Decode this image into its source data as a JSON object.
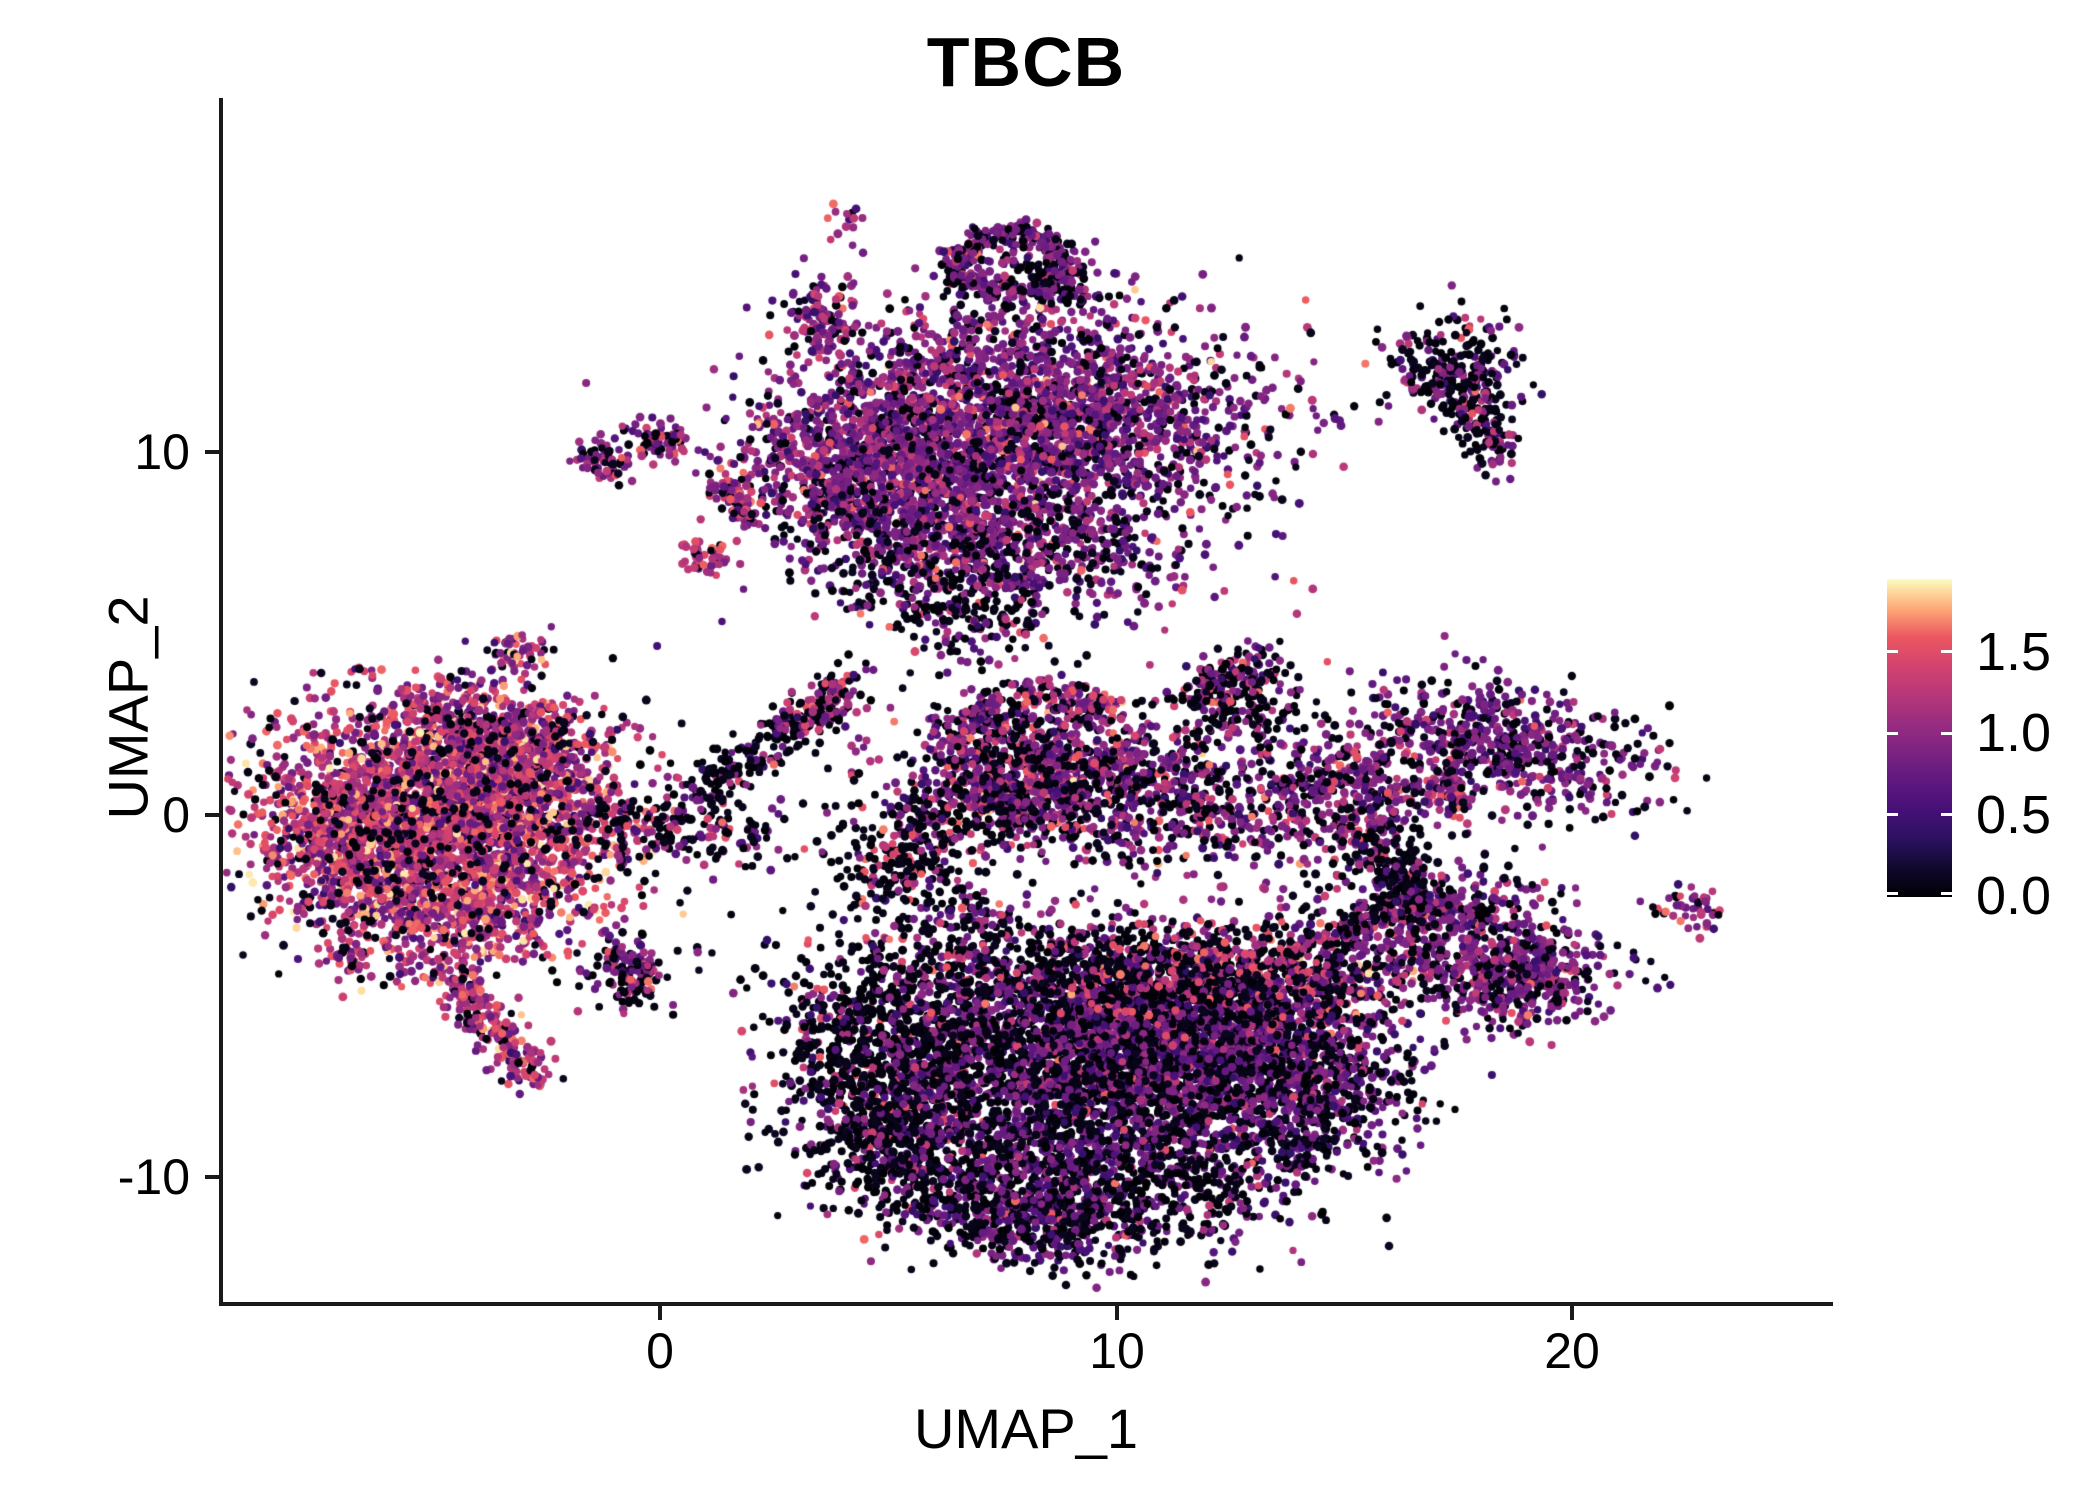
{
  "chart_data": {
    "type": "scatter",
    "title": "TBCB",
    "xlabel": "UMAP_1",
    "ylabel": "UMAP_2",
    "xlim": [
      -9.6,
      25.7
    ],
    "ylim": [
      -13.5,
      19.7
    ],
    "grid": false,
    "x_tick_labels": [
      "0",
      "10",
      "20"
    ],
    "x_tick_values": [
      0,
      10,
      20
    ],
    "y_tick_labels": [
      "10",
      "0",
      "-10"
    ],
    "y_tick_values": [
      10,
      0,
      -10
    ],
    "legend_position": "right",
    "colorbar": {
      "vmin": 0.0,
      "vmax": 1.95,
      "tick_labels": [
        "1.5",
        "1.0",
        "0.5",
        "0.0"
      ],
      "tick_values": [
        1.5,
        1.0,
        0.5,
        0.0
      ]
    },
    "palette_name": "magma",
    "palette": [
      "#000004",
      "#10092d",
      "#2c1160",
      "#451077",
      "#5f187f",
      "#7b2382",
      "#982d80",
      "#b73779",
      "#d3436e",
      "#eb5760",
      "#feab76",
      "#fcfdbf"
    ],
    "expression_bins": [
      [
        0.0,
        0.12
      ],
      [
        0.38,
        0.7
      ],
      [
        0.72,
        1.02
      ],
      [
        1.05,
        1.32
      ],
      [
        1.35,
        1.68
      ],
      [
        1.7,
        1.92
      ]
    ],
    "point_radius_px": [
      3.6,
      4.5
    ],
    "clusters": [
      {
        "name": "left-core",
        "kind": "blob",
        "cx": -4.6,
        "cy": 0.2,
        "sx": 1.9,
        "sy": 1.3,
        "rot": -12,
        "n": 2300,
        "mix": [
          7,
          6,
          17,
          30,
          31,
          9
        ]
      },
      {
        "name": "left-top",
        "kind": "blob",
        "cx": -3.4,
        "cy": 2.2,
        "sx": 1.2,
        "sy": 0.7,
        "rot": -25,
        "n": 550,
        "mix": [
          10,
          8,
          22,
          30,
          26,
          4
        ]
      },
      {
        "name": "left-west",
        "kind": "blob",
        "cx": -6.9,
        "cy": -0.8,
        "sx": 1.0,
        "sy": 1.1,
        "rot": 0,
        "n": 500,
        "mix": [
          7,
          6,
          17,
          30,
          31,
          9
        ]
      },
      {
        "name": "left-south",
        "kind": "blob",
        "cx": -4.6,
        "cy": -2.6,
        "sx": 1.4,
        "sy": 0.9,
        "rot": 15,
        "n": 650,
        "mix": [
          7,
          6,
          17,
          30,
          31,
          9
        ]
      },
      {
        "name": "left-tail",
        "kind": "line",
        "x1": -4.8,
        "y1": -4.1,
        "x2": -2.8,
        "y2": -7.2,
        "s": 0.3,
        "n": 230,
        "mix": [
          10,
          8,
          22,
          30,
          26,
          4
        ]
      },
      {
        "name": "left-halo",
        "kind": "blob",
        "cx": -4.8,
        "cy": -0.2,
        "sx": 2.6,
        "sy": 2.0,
        "rot": 0,
        "n": 300,
        "mix": [
          85,
          5,
          6,
          3,
          1,
          0
        ]
      },
      {
        "name": "island-west",
        "kind": "blob",
        "cx": -3.1,
        "cy": 4.5,
        "sx": 0.33,
        "sy": 0.28,
        "rot": 0,
        "n": 55,
        "mix": [
          15,
          10,
          30,
          25,
          18,
          2
        ]
      },
      {
        "name": "island-sw",
        "kind": "blob",
        "cx": -6.7,
        "cy": -4.0,
        "sx": 0.24,
        "sy": 0.18,
        "rot": 0,
        "n": 22,
        "mix": [
          20,
          10,
          30,
          30,
          10,
          0
        ]
      },
      {
        "name": "island-s",
        "kind": "blob",
        "cx": -0.65,
        "cy": -4.3,
        "sx": 0.5,
        "sy": 0.5,
        "rot": 0,
        "n": 140,
        "mix": [
          48,
          10,
          20,
          14,
          8,
          0
        ]
      },
      {
        "name": "top-main",
        "kind": "blob",
        "cx": 8.3,
        "cy": 11.0,
        "sx": 2.3,
        "sy": 1.55,
        "rot": -8,
        "n": 2300,
        "mix": [
          20,
          16,
          44,
          15,
          4.5,
          0.5
        ]
      },
      {
        "name": "top-left-lobe",
        "kind": "blob",
        "cx": 4.5,
        "cy": 9.9,
        "sx": 1.3,
        "sy": 1.2,
        "rot": -20,
        "n": 800,
        "mix": [
          18,
          14,
          38,
          22,
          7.5,
          0.5
        ]
      },
      {
        "name": "top-bridge",
        "kind": "blob",
        "cx": 6.2,
        "cy": 8.6,
        "sx": 1.8,
        "sy": 1.0,
        "rot": -10,
        "n": 650,
        "mix": [
          20,
          16,
          44,
          15,
          4.5,
          0.5
        ]
      },
      {
        "name": "top-south-fringe",
        "kind": "blob",
        "cx": 7.5,
        "cy": 7.2,
        "sx": 2.0,
        "sy": 0.9,
        "rot": -5,
        "n": 520,
        "mix": [
          38,
          15,
          32,
          10,
          5,
          0
        ]
      },
      {
        "name": "top-stream",
        "kind": "line",
        "x1": 4.6,
        "y1": 6.9,
        "x2": 7.7,
        "y2": 4.9,
        "s": 0.8,
        "n": 260,
        "mix": [
          60,
          10,
          18,
          8,
          4,
          0
        ]
      },
      {
        "name": "ring",
        "kind": "ring",
        "cx": 7.7,
        "cy": 15.2,
        "rx": 1.15,
        "ry": 0.85,
        "s": 0.18,
        "n": 360,
        "mix": [
          35,
          12,
          38,
          12,
          3,
          0
        ]
      },
      {
        "name": "ring-inner",
        "kind": "blob",
        "cx": 7.7,
        "cy": 15.2,
        "sx": 0.5,
        "sy": 0.4,
        "rot": 0,
        "n": 40,
        "mix": [
          55,
          10,
          25,
          10,
          0,
          0
        ]
      },
      {
        "name": "ring-tail",
        "kind": "line",
        "x1": 8.5,
        "y1": 15.1,
        "x2": 9.3,
        "y2": 14.2,
        "s": 0.22,
        "n": 60,
        "mix": [
          50,
          10,
          30,
          10,
          0,
          0
        ]
      },
      {
        "name": "islet-north",
        "kind": "blob",
        "cx": 4.1,
        "cy": 16.4,
        "sx": 0.18,
        "sy": 0.26,
        "rot": 0,
        "n": 13,
        "mix": [
          10,
          5,
          25,
          30,
          30,
          0
        ]
      },
      {
        "name": "islet-n2",
        "kind": "blob",
        "cx": 3.55,
        "cy": 13.6,
        "sx": 0.33,
        "sy": 0.6,
        "rot": 10,
        "n": 120,
        "mix": [
          20,
          10,
          35,
          25,
          10,
          0
        ]
      },
      {
        "name": "islet-nw1",
        "kind": "blob",
        "cx": -1.2,
        "cy": 9.8,
        "sx": 0.35,
        "sy": 0.3,
        "rot": 0,
        "n": 60,
        "mix": [
          25,
          10,
          30,
          20,
          15,
          0
        ]
      },
      {
        "name": "islet-nw2",
        "kind": "blob",
        "cx": -0.05,
        "cy": 10.3,
        "sx": 0.38,
        "sy": 0.28,
        "rot": -15,
        "n": 65,
        "mix": [
          25,
          10,
          30,
          20,
          15,
          0
        ]
      },
      {
        "name": "streak-nw",
        "kind": "line",
        "x1": 1.25,
        "y1": 9.15,
        "x2": 2.0,
        "y2": 8.2,
        "s": 0.18,
        "n": 85,
        "mix": [
          18,
          7,
          25,
          28,
          22,
          0
        ]
      },
      {
        "name": "pink-blob",
        "kind": "blob",
        "cx": 0.95,
        "cy": 7.1,
        "sx": 0.28,
        "sy": 0.22,
        "rot": 0,
        "n": 45,
        "mix": [
          10,
          6,
          22,
          42,
          20,
          0
        ]
      },
      {
        "name": "mid-main",
        "kind": "blob",
        "cx": 9.7,
        "cy": 0.9,
        "sx": 2.0,
        "sy": 1.0,
        "rot": -12,
        "n": 1100,
        "mix": [
          36,
          10,
          30,
          15,
          8,
          1
        ]
      },
      {
        "name": "mid-west-wing",
        "kind": "blob",
        "cx": 7.6,
        "cy": 0.7,
        "sx": 0.8,
        "sy": 0.8,
        "rot": 0,
        "n": 300,
        "mix": [
          36,
          10,
          30,
          15,
          8,
          1
        ]
      },
      {
        "name": "mid-arc-pink",
        "kind": "line",
        "x1": 7.9,
        "y1": 3.5,
        "x2": 9.9,
        "y2": 2.7,
        "s": 0.3,
        "n": 130,
        "mix": [
          25,
          8,
          30,
          25,
          12,
          0
        ]
      },
      {
        "name": "mid-arc-purple",
        "kind": "line",
        "x1": 6.4,
        "y1": 1.8,
        "x2": 7.4,
        "y2": 3.0,
        "s": 0.3,
        "n": 110,
        "mix": [
          30,
          10,
          35,
          18,
          7,
          0
        ]
      },
      {
        "name": "mid-east-wing",
        "kind": "line",
        "x1": 11.8,
        "y1": 3.3,
        "x2": 13.3,
        "y2": 4.2,
        "s": 0.35,
        "n": 130,
        "mix": [
          45,
          10,
          25,
          12,
          8,
          0
        ]
      },
      {
        "name": "mid-east-dark",
        "kind": "blob",
        "cx": 12.8,
        "cy": 2.9,
        "sx": 0.7,
        "sy": 0.5,
        "rot": 0,
        "n": 120,
        "mix": [
          55,
          10,
          25,
          7,
          3,
          0
        ]
      },
      {
        "name": "mid-black-stream",
        "kind": "line",
        "x1": 0.7,
        "y1": 0.5,
        "x2": 4.3,
        "y2": 3.5,
        "s": 0.35,
        "n": 230,
        "mix": [
          72,
          8,
          12,
          5,
          3,
          0
        ]
      },
      {
        "name": "mid-low-scatter",
        "kind": "blob",
        "cx": 0.2,
        "cy": -0.4,
        "sx": 1.5,
        "sy": 0.5,
        "rot": -10,
        "n": 190,
        "mix": [
          50,
          10,
          20,
          12,
          8,
          0
        ]
      },
      {
        "name": "mid-orange-stream",
        "kind": "line",
        "x1": 2.9,
        "y1": 2.4,
        "x2": 4.1,
        "y2": 3.5,
        "s": 0.25,
        "n": 80,
        "mix": [
          25,
          6,
          20,
          25,
          24,
          0
        ]
      },
      {
        "name": "mid-black-blob",
        "kind": "blob",
        "cx": 5.3,
        "cy": -1.3,
        "sx": 0.6,
        "sy": 0.85,
        "rot": 0,
        "n": 200,
        "mix": [
          68,
          7,
          10,
          7,
          8,
          0
        ]
      },
      {
        "name": "mid-scatter-e",
        "kind": "blob",
        "cx": 6.5,
        "cy": -0.1,
        "sx": 1.2,
        "sy": 0.9,
        "rot": 0,
        "n": 150,
        "mix": [
          60,
          10,
          18,
          8,
          4,
          0
        ]
      },
      {
        "name": "mid-scatter-s",
        "kind": "blob",
        "cx": 6.8,
        "cy": -2.8,
        "sx": 0.5,
        "sy": 0.4,
        "rot": 0,
        "n": 70,
        "mix": [
          60,
          10,
          18,
          8,
          4,
          0
        ]
      },
      {
        "name": "bot-west-black",
        "kind": "blob",
        "cx": 5.0,
        "cy": -7.0,
        "sx": 1.3,
        "sy": 1.6,
        "rot": 10,
        "n": 1000,
        "mix": [
          78,
          6,
          6,
          4,
          6,
          0
        ]
      },
      {
        "name": "bot-west-tail",
        "kind": "line",
        "x1": 4.3,
        "y1": -8.5,
        "x2": 5.8,
        "y2": -10.3,
        "s": 0.5,
        "n": 220,
        "mix": [
          70,
          8,
          10,
          7,
          5,
          0
        ]
      },
      {
        "name": "bot-central",
        "kind": "blob",
        "cx": 9.1,
        "cy": -6.4,
        "sx": 2.0,
        "sy": 1.4,
        "rot": -5,
        "n": 2200,
        "mix": [
          47,
          13,
          33,
          5,
          2,
          0
        ]
      },
      {
        "name": "bot-east",
        "kind": "blob",
        "cx": 12.6,
        "cy": -6.3,
        "sx": 1.6,
        "sy": 1.2,
        "rot": 8,
        "n": 1200,
        "mix": [
          47,
          13,
          33,
          5,
          2,
          0
        ]
      },
      {
        "name": "bot-south",
        "kind": "blob",
        "cx": 9.2,
        "cy": -9.8,
        "sx": 2.1,
        "sy": 1.2,
        "rot": -5,
        "n": 1300,
        "mix": [
          55,
          14,
          27,
          3,
          1,
          0
        ]
      },
      {
        "name": "bot-south2",
        "kind": "blob",
        "cx": 8.0,
        "cy": -11.2,
        "sx": 1.2,
        "sy": 0.6,
        "rot": -10,
        "n": 300,
        "mix": [
          55,
          14,
          27,
          3,
          1,
          0
        ]
      },
      {
        "name": "bot-north-fringe",
        "kind": "blob",
        "cx": 9.5,
        "cy": -4.3,
        "sx": 2.6,
        "sy": 0.7,
        "rot": 0,
        "n": 550,
        "mix": [
          62,
          8,
          14,
          8,
          8,
          0
        ]
      },
      {
        "name": "bot-orange-pocket",
        "kind": "blob",
        "cx": 12.5,
        "cy": -4.3,
        "sx": 1.9,
        "sy": 0.8,
        "rot": 0,
        "n": 450,
        "mix": [
          50,
          6,
          12,
          12,
          19,
          1
        ]
      },
      {
        "name": "bot-orange-e",
        "kind": "blob",
        "cx": 14.6,
        "cy": -4.6,
        "sx": 0.8,
        "sy": 0.8,
        "rot": 0,
        "n": 220,
        "mix": [
          50,
          6,
          12,
          12,
          19,
          1
        ]
      },
      {
        "name": "bot-se",
        "kind": "blob",
        "cx": 14.2,
        "cy": -8.0,
        "sx": 1.3,
        "sy": 1.0,
        "rot": 15,
        "n": 550,
        "mix": [
          55,
          14,
          27,
          3,
          1,
          0
        ]
      },
      {
        "name": "right-ne",
        "kind": "blob",
        "cx": 18.5,
        "cy": 1.9,
        "sx": 1.6,
        "sy": 0.8,
        "rot": -15,
        "n": 620,
        "mix": [
          30,
          12,
          45,
          10,
          3,
          0
        ]
      },
      {
        "name": "right-ne-tip",
        "kind": "line",
        "x1": 17.1,
        "y1": 1.0,
        "x2": 17.5,
        "y2": 0.2,
        "s": 0.2,
        "n": 50,
        "mix": [
          15,
          5,
          20,
          25,
          35,
          0
        ]
      },
      {
        "name": "right-mid",
        "kind": "blob",
        "cx": 15.0,
        "cy": 0.5,
        "sx": 1.1,
        "sy": 0.9,
        "rot": 0,
        "n": 400,
        "mix": [
          38,
          10,
          30,
          15,
          7,
          0
        ]
      },
      {
        "name": "right-se",
        "kind": "blob",
        "cx": 17.6,
        "cy": -3.4,
        "sx": 1.6,
        "sy": 0.95,
        "rot": -25,
        "n": 650,
        "mix": [
          30,
          12,
          45,
          10,
          3,
          0
        ]
      },
      {
        "name": "right-se2",
        "kind": "blob",
        "cx": 18.8,
        "cy": -4.6,
        "sx": 0.8,
        "sy": 0.65,
        "rot": 0,
        "n": 250,
        "mix": [
          30,
          12,
          45,
          10,
          3,
          0
        ]
      },
      {
        "name": "island-far-east",
        "kind": "blob",
        "cx": 22.6,
        "cy": -2.6,
        "sx": 0.45,
        "sy": 0.28,
        "rot": -25,
        "n": 45,
        "mix": [
          20,
          8,
          40,
          22,
          10,
          0
        ]
      },
      {
        "name": "right-top-blob",
        "kind": "blob",
        "cx": 17.4,
        "cy": 12.2,
        "sx": 0.75,
        "sy": 0.7,
        "rot": 0,
        "n": 260,
        "mix": [
          58,
          10,
          20,
          10,
          2,
          0
        ]
      },
      {
        "name": "right-top-tail",
        "kind": "line",
        "x1": 17.8,
        "y1": 11.4,
        "x2": 18.4,
        "y2": 9.8,
        "s": 0.28,
        "n": 110,
        "mix": [
          58,
          10,
          20,
          10,
          2,
          0
        ]
      },
      {
        "name": "bridge1",
        "kind": "line",
        "x1": 15.4,
        "y1": -0.6,
        "x2": 16.9,
        "y2": -2.7,
        "s": 0.3,
        "n": 130,
        "mix": [
          70,
          8,
          15,
          5,
          2,
          0
        ]
      },
      {
        "name": "bridge2",
        "kind": "line",
        "x1": 16.6,
        "y1": -1.0,
        "x2": 15.3,
        "y2": -3.3,
        "s": 0.25,
        "n": 90,
        "mix": [
          70,
          8,
          15,
          5,
          2,
          0
        ]
      },
      {
        "name": "sparse-bottom",
        "kind": "box",
        "cx": 8.5,
        "cy": -7.0,
        "w": 13,
        "h": 9,
        "n": 90,
        "mix": [
          100,
          0,
          0,
          0,
          0,
          0
        ]
      },
      {
        "name": "sparse-top",
        "kind": "box",
        "cx": 8.0,
        "cy": 11.0,
        "w": 11,
        "h": 7,
        "n": 60,
        "mix": [
          100,
          0,
          0,
          0,
          0,
          0
        ]
      },
      {
        "name": "sparse-left",
        "kind": "box",
        "cx": -4.6,
        "cy": 0.0,
        "w": 9,
        "h": 9,
        "n": 60,
        "mix": [
          70,
          5,
          10,
          10,
          5,
          0
        ]
      },
      {
        "name": "sparse-mid",
        "kind": "box",
        "cx": 10.0,
        "cy": 1.2,
        "w": 8,
        "h": 5,
        "n": 50,
        "mix": [
          100,
          0,
          0,
          0,
          0,
          0
        ]
      },
      {
        "name": "sparse-right",
        "kind": "box",
        "cx": 17.5,
        "cy": -2.0,
        "w": 6,
        "h": 6,
        "n": 40,
        "mix": [
          100,
          0,
          0,
          0,
          0,
          0
        ]
      }
    ]
  }
}
